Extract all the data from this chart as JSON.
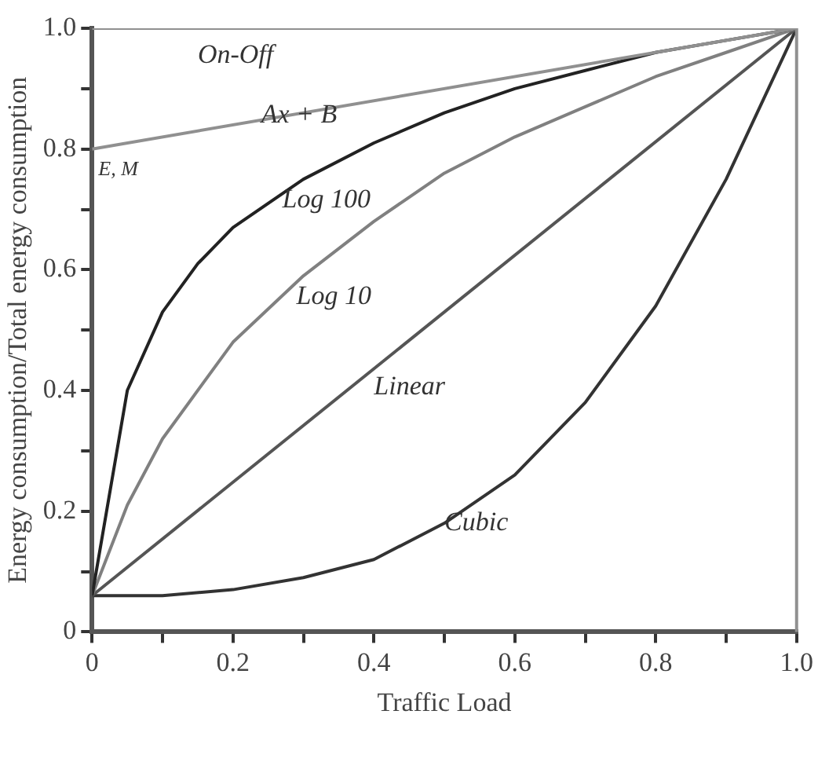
{
  "chart_data": {
    "type": "line",
    "xlabel": "Traffic Load",
    "ylabel": "Energy consumption/Total energy consumption",
    "xlim": [
      0,
      1
    ],
    "ylim": [
      0,
      1
    ],
    "xticks": [
      "0",
      {
        "value": 0.1,
        "label": null
      },
      {
        "value": 0.2,
        "label": "0.2"
      },
      {
        "value": 0.3,
        "label": null
      },
      {
        "value": 0.4,
        "label": "0.4"
      },
      {
        "value": 0.5,
        "label": null
      },
      {
        "value": 0.6,
        "label": "0.6"
      },
      {
        "value": 0.7,
        "label": null
      },
      {
        "value": 0.8,
        "label": "0.8"
      },
      {
        "value": 0.9,
        "label": null
      },
      {
        "value": 1,
        "label": "1.0"
      }
    ],
    "yticks": [
      "0",
      {
        "value": 0.1,
        "label": null
      },
      {
        "value": 0.2,
        "label": "0.2"
      },
      {
        "value": 0.3,
        "label": null
      },
      {
        "value": 0.4,
        "label": "0.4"
      },
      {
        "value": 0.5,
        "label": null
      },
      {
        "value": 0.6,
        "label": "0.6"
      },
      {
        "value": 0.7,
        "label": null
      },
      {
        "value": 0.8,
        "label": "0.8"
      },
      {
        "value": 0.9,
        "label": null
      },
      {
        "value": 1,
        "label": "1.0"
      }
    ],
    "grid": false,
    "legend": false,
    "marker": "none",
    "line_style": "solid",
    "annotations": [
      "E, M"
    ],
    "series": [
      {
        "name": "On-Off",
        "color": "#909090",
        "x": [
          0,
          1
        ],
        "values": [
          1,
          1
        ]
      },
      {
        "name": "Ax + B",
        "color": "#909090",
        "x": [
          0,
          1
        ],
        "values": [
          0.8,
          1
        ]
      },
      {
        "name": "Log 100",
        "color": "#222222",
        "x": [
          0,
          0.05,
          0.1,
          0.15,
          0.2,
          0.3,
          0.4,
          0.5,
          0.6,
          0.7,
          0.8,
          0.9,
          1
        ],
        "values": [
          0.06,
          0.4,
          0.53,
          0.61,
          0.67,
          0.75,
          0.81,
          0.86,
          0.9,
          0.93,
          0.96,
          0.98,
          1
        ]
      },
      {
        "name": "Log 10",
        "color": "#808080",
        "x": [
          0,
          0.05,
          0.1,
          0.2,
          0.3,
          0.4,
          0.5,
          0.6,
          0.7,
          0.8,
          0.9,
          1
        ],
        "values": [
          0.06,
          0.21,
          0.32,
          0.48,
          0.59,
          0.68,
          0.76,
          0.82,
          0.87,
          0.92,
          0.96,
          1
        ]
      },
      {
        "name": "Linear",
        "color": "#555555",
        "x": [
          0,
          1
        ],
        "values": [
          0.06,
          1
        ]
      },
      {
        "name": "Cubic",
        "color": "#333333",
        "x": [
          0,
          0.1,
          0.2,
          0.3,
          0.4,
          0.5,
          0.6,
          0.7,
          0.8,
          0.9,
          1
        ],
        "values": [
          0.06,
          0.06,
          0.07,
          0.09,
          0.12,
          0.18,
          0.26,
          0.38,
          0.54,
          0.75,
          1
        ]
      }
    ]
  }
}
